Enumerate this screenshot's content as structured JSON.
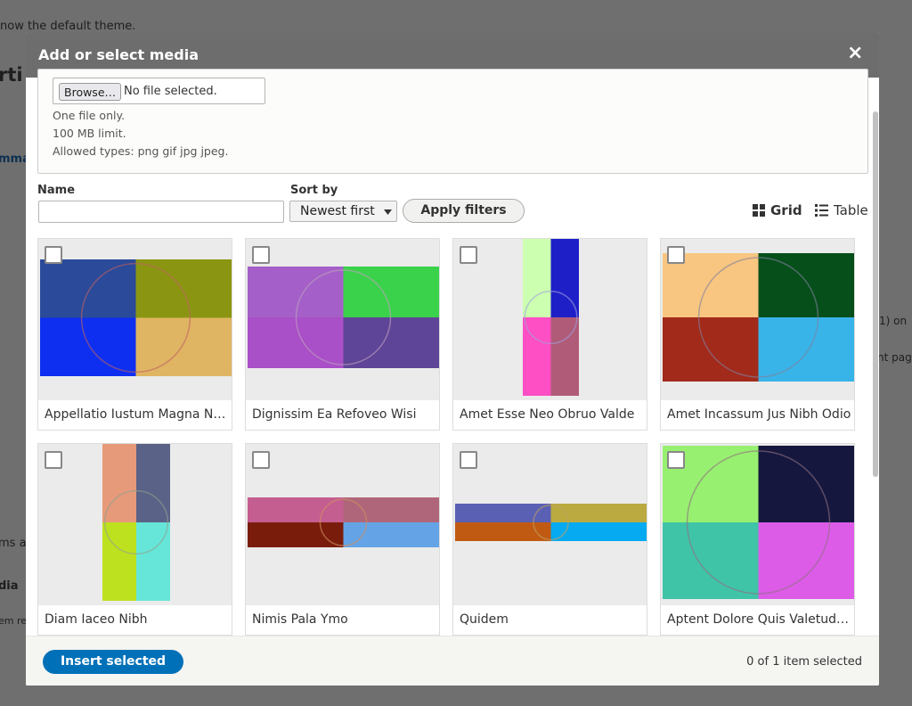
{
  "background": {
    "texts": [
      "now the default theme.",
      "rti",
      "mma",
      "ms a",
      "dia",
      "em re",
      "1) on",
      "nt page"
    ]
  },
  "dialog": {
    "title": "Add or select media",
    "close": "×"
  },
  "upload": {
    "browse": "Browse…",
    "file": "No file selected.",
    "notes": [
      "One file only.",
      "100 MB limit.",
      "Allowed types: png gif jpg jpeg."
    ]
  },
  "filters": {
    "name_label": "Name",
    "sort_label": "Sort by",
    "sort_value": "Newest first",
    "apply": "Apply filters"
  },
  "views": [
    "Grid",
    "Table"
  ],
  "media": [
    {
      "name": "Appellatio Iustum Magna N…"
    },
    {
      "name": "Dignissim Ea Refoveo Wisi"
    },
    {
      "name": "Amet Esse Neo Obruo Valde"
    },
    {
      "name": "Amet Incassum Jus Nibh Odio"
    },
    {
      "name": "Diam Iaceo Nibh"
    },
    {
      "name": "Nimis Pala Ymo"
    },
    {
      "name": "Quidem"
    },
    {
      "name": "Aptent Dolore Quis Valetud…"
    }
  ],
  "footer": {
    "insert": "Insert selected",
    "status": "0 of 1 item selected"
  }
}
